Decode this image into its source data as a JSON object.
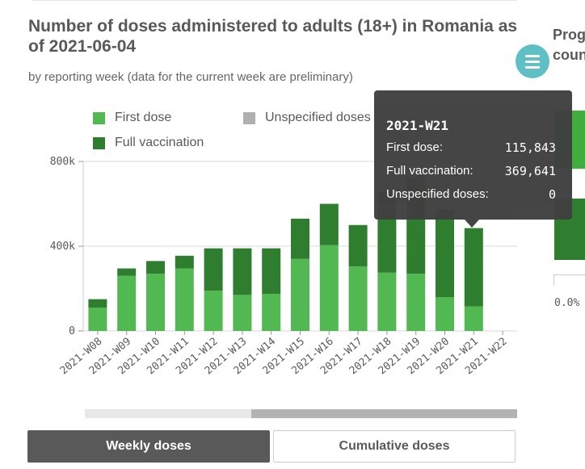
{
  "title": "Number of doses administered to adults (18+) in Romania as of 2021-06-04",
  "subtitle": "by reporting week (data for the current week are preliminary)",
  "legend": [
    {
      "label": "First dose",
      "color": "#52b852"
    },
    {
      "label": "Full vaccination",
      "color": "#2f7d2f"
    },
    {
      "label": "Unspecified doses",
      "color": "#b0b0b0"
    }
  ],
  "chart_data": {
    "type": "bar",
    "stacked": true,
    "categories": [
      "2021-W08",
      "2021-W09",
      "2021-W10",
      "2021-W11",
      "2021-W12",
      "2021-W13",
      "2021-W14",
      "2021-W15",
      "2021-W16",
      "2021-W17",
      "2021-W18",
      "2021-W19",
      "2021-W20",
      "2021-W21",
      "2021-W22"
    ],
    "series": [
      {
        "name": "First dose",
        "color": "#52b852",
        "values": [
          110000,
          260000,
          270000,
          295000,
          190000,
          170000,
          175000,
          340000,
          405000,
          305000,
          275000,
          270000,
          160000,
          115843,
          0
        ]
      },
      {
        "name": "Full vaccination",
        "color": "#2f7d2f",
        "values": [
          40000,
          35000,
          60000,
          60000,
          200000,
          220000,
          215000,
          190000,
          195000,
          195000,
          385000,
          460000,
          415000,
          369641,
          0
        ]
      },
      {
        "name": "Unspecified doses",
        "color": "#b0b0b0",
        "values": [
          0,
          0,
          0,
          0,
          0,
          0,
          0,
          0,
          0,
          0,
          0,
          0,
          0,
          0,
          0
        ]
      }
    ],
    "yticks": [
      {
        "value": 0,
        "label": "0"
      },
      {
        "value": 400000,
        "label": "400k"
      },
      {
        "value": 800000,
        "label": "800k"
      }
    ],
    "ylim": [
      0,
      800000
    ],
    "grid": true,
    "legend_position": "top",
    "highlight_index": 13
  },
  "tooltip": {
    "title": "2021-W21",
    "rows": [
      {
        "label": "First dose:",
        "value": "115,843"
      },
      {
        "label": "Full vaccination:",
        "value": "369,641"
      },
      {
        "label": "Unspecified doses:",
        "value": "0"
      }
    ]
  },
  "buttons": {
    "weekly": "Weekly doses",
    "cumulative": "Cumulative doses"
  },
  "right_panel": {
    "title_line1": "Prog",
    "title_line2": "coun",
    "tick_label": "0.0%"
  }
}
